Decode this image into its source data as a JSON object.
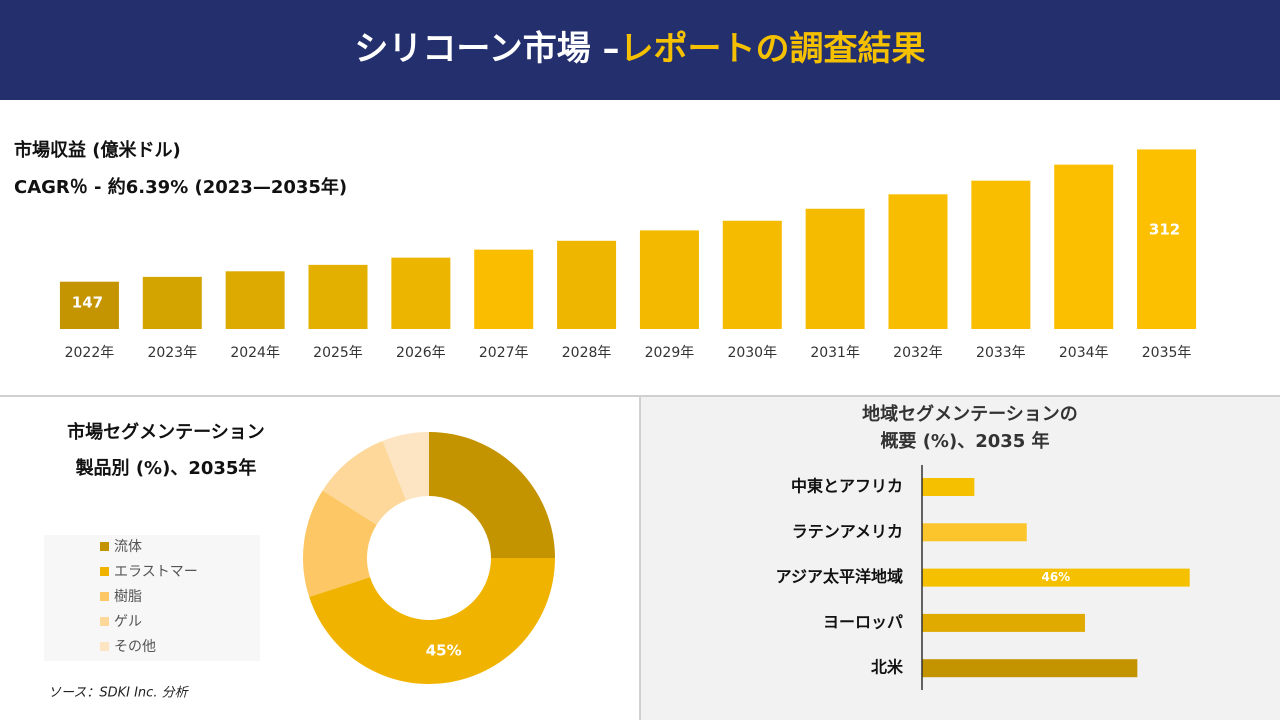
{
  "header": {
    "title_main": "シリコーン市場 –",
    "title_highlight": "レポートの調査結果"
  },
  "source": "ソース：SDKI Inc. 分析",
  "chart_data": [
    {
      "type": "bar",
      "title": "市場収益 (億米ドル)",
      "subtitle": "CAGR％ - 約6.39% (2023—2035年)",
      "categories": [
        "2022年",
        "2023年",
        "2024年",
        "2025年",
        "2026年",
        "2027年",
        "2028年",
        "2029年",
        "2030年",
        "2031年",
        "2032年",
        "2033年",
        "2034年",
        "2035年"
      ],
      "values": [
        147,
        153,
        160,
        168,
        177,
        187,
        198,
        211,
        223,
        238,
        256,
        273,
        293,
        312
      ],
      "colors": [
        "#c49500",
        "#d3a300",
        "#dcaa00",
        "#e3b000",
        "#ebb500",
        "#fbbd00",
        "#efb600",
        "#f2b900",
        "#f5bb00",
        "#f5bb00",
        "#f8bd00",
        "#f9be00",
        "#fbbf00",
        "#fcc000"
      ],
      "ylim": [
        88,
        320
      ]
    },
    {
      "type": "donut",
      "title": "市場セグメンテーション",
      "subtitle": "製品別 (%)、2035年",
      "categories": [
        "流体",
        "エラストマー",
        "樹脂",
        "ゲル",
        "その他"
      ],
      "values": [
        25,
        45,
        14,
        10,
        6
      ],
      "value_labels": [
        null,
        "45%",
        null,
        null,
        null
      ],
      "colors": [
        "#c49300",
        "#f0b400",
        "#fcc764",
        "#fdd89a",
        "#fde4c2"
      ]
    },
    {
      "type": "hbar",
      "title": "地域セグメンテーションの",
      "subtitle": "概要 (%)、2035 年",
      "categories": [
        "中東とアフリカ",
        "ラテンアメリカ",
        "アジア太平洋地域",
        "ヨーロッパ",
        "北米"
      ],
      "values": [
        9,
        18,
        46,
        28,
        37
      ],
      "value_labels": [
        null,
        null,
        "46%",
        null,
        null
      ],
      "colors": [
        "#f5c000",
        "#fcc52c",
        "#f5c000",
        "#e0aa00",
        "#c49300"
      ],
      "xlim": [
        0,
        50
      ]
    }
  ]
}
